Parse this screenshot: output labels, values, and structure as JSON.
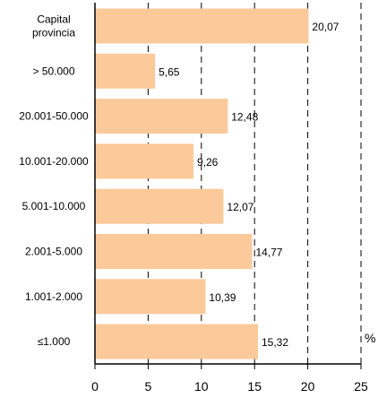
{
  "chart_data": {
    "type": "bar",
    "orientation": "horizontal",
    "categories": [
      "Capital provincia",
      "> 50.000",
      "20.001-50.000",
      "10.001-20.000",
      "5.001-10.000",
      "2.001-5.000",
      "1.001-2.000",
      "≤1.000"
    ],
    "values": [
      20.07,
      5.65,
      12.48,
      9.26,
      12.07,
      14.77,
      10.39,
      15.32
    ],
    "value_labels": [
      "20,07",
      "5,65",
      "12,48",
      "9,26",
      "12,07",
      "14,77",
      "10,39",
      "15,32"
    ],
    "xlim": [
      0,
      25
    ],
    "x_ticks": [
      0,
      5,
      10,
      15,
      20,
      25
    ],
    "x_tick_labels": [
      "0",
      "5",
      "10",
      "15",
      "20",
      "25"
    ],
    "unit_label": "%",
    "title": "",
    "xlabel": "",
    "ylabel": "",
    "grid": "vertical dashed",
    "bar_color": "#fcc99a",
    "legend": "none"
  }
}
